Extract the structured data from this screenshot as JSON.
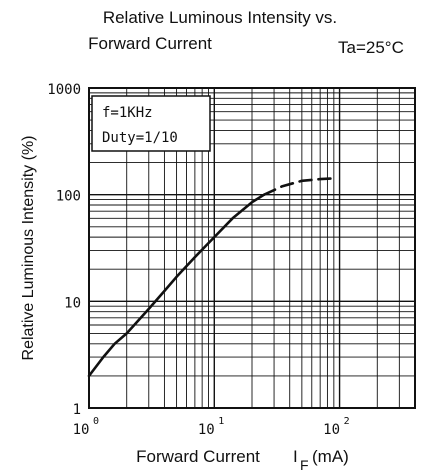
{
  "chart_data": {
    "type": "line",
    "title_line1": "Relative Luminous Intensity vs.",
    "title_line2": "Forward Current",
    "condition": "Ta=25°C",
    "xlabel": "Forward Current",
    "xlabel_symbol": "I",
    "xlabel_subscript": "F",
    "xlabel_unit": "(mA)",
    "ylabel": "Relative Luminous Intensity (%)",
    "x_scale": "log",
    "y_scale": "log",
    "xlim": [
      1,
      400
    ],
    "ylim": [
      1,
      1000
    ],
    "x_ticks": [
      {
        "value": 1,
        "base": "10",
        "exp": "0"
      },
      {
        "value": 10,
        "base": "10",
        "exp": "1"
      },
      {
        "value": 100,
        "base": "10",
        "exp": "2"
      }
    ],
    "y_ticks": [
      {
        "value": 1,
        "label": "1"
      },
      {
        "value": 10,
        "label": "10"
      },
      {
        "value": 100,
        "label": "100"
      },
      {
        "value": 1000,
        "label": "1000"
      }
    ],
    "grid": true,
    "annotation": [
      "f=1KHz",
      "Duty=1/10"
    ],
    "series": [
      {
        "style": "solid",
        "x": [
          1,
          1.3,
          1.6,
          2,
          3,
          4,
          5,
          7,
          10,
          14,
          20,
          25
        ],
        "y": [
          2,
          3,
          4,
          5,
          8.5,
          12.5,
          17,
          26,
          40,
          60,
          85,
          100
        ]
      },
      {
        "style": "dashed",
        "x": [
          25,
          35,
          50,
          70,
          90
        ],
        "y": [
          100,
          120,
          135,
          140,
          142
        ]
      }
    ]
  }
}
